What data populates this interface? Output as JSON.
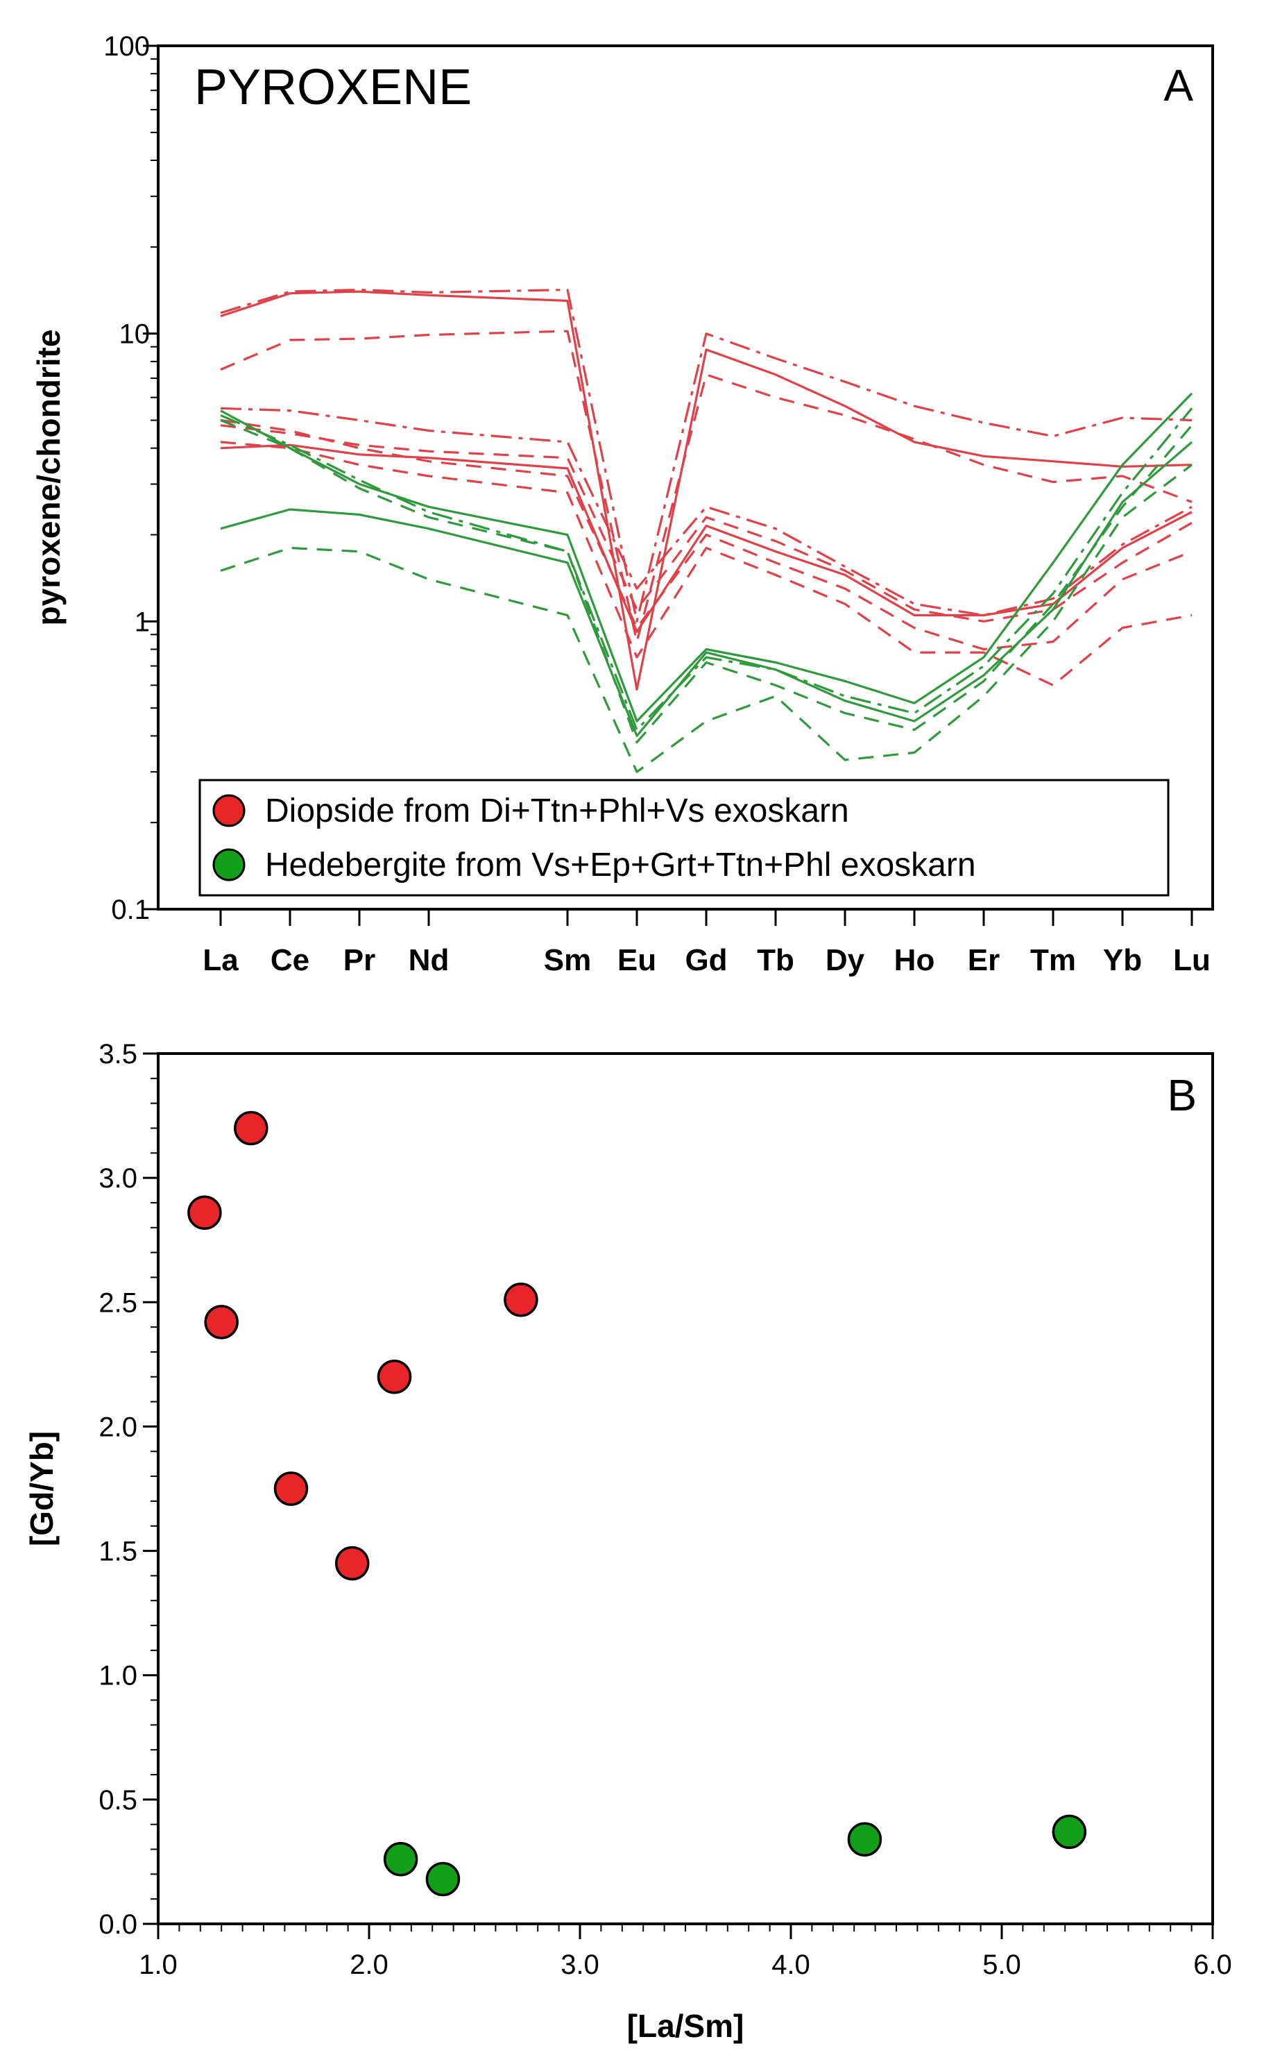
{
  "colors": {
    "diopside": "#e8262a",
    "diopside_line": "#e04048",
    "hedenbergite": "#12a01a",
    "hedenbergite_line": "#2f9a3c",
    "axis": "#000000",
    "background": "#ffffff"
  },
  "chart_data": [
    {
      "panel": "A",
      "type": "line",
      "title": "PYROXENE",
      "panel_label": "A",
      "ylabel": "pyroxene/chondrite",
      "xlabel": "",
      "yscale": "log",
      "ylim": [
        0.1,
        100
      ],
      "ytick_labels": [
        "0.1",
        "1",
        "10",
        "100"
      ],
      "grid": false,
      "legend_position": "bottom",
      "legend": [
        {
          "label": "Diopside from Di+Ttn+Phl+Vs exoskarn",
          "group": "diopside"
        },
        {
          "label": "Hedebergite from Vs+Ep+Grt+Ttn+Phl exoskarn",
          "group": "hedenbergite"
        }
      ],
      "categories": [
        "La",
        "Ce",
        "Pr",
        "Nd",
        "Sm",
        "Eu",
        "Gd",
        "Tb",
        "Dy",
        "Ho",
        "Er",
        "Tm",
        "Yb",
        "Lu"
      ],
      "category_positions": [
        0,
        1,
        2,
        3,
        5,
        6,
        7,
        8,
        9,
        10,
        11,
        12,
        13,
        14
      ],
      "series": [
        {
          "name": "Diopside 1",
          "group": "diopside",
          "dash": "solid",
          "values": [
            11.5,
            13.8,
            14.0,
            13.6,
            13.0,
            0.58,
            8.8,
            7.2,
            5.6,
            4.2,
            3.75,
            3.6,
            3.45,
            3.5
          ]
        },
        {
          "name": "Diopside 2",
          "group": "diopside",
          "dash": "dashdot",
          "values": [
            11.8,
            14.0,
            14.2,
            13.9,
            14.2,
            1.0,
            10.0,
            8.2,
            6.8,
            5.6,
            4.9,
            4.4,
            5.1,
            5.0
          ]
        },
        {
          "name": "Diopside 3",
          "group": "diopside",
          "dash": "dashed",
          "values": [
            7.5,
            9.5,
            9.6,
            9.9,
            10.2,
            0.85,
            7.2,
            6.0,
            5.2,
            4.3,
            3.5,
            3.05,
            3.2,
            2.6
          ]
        },
        {
          "name": "Diopside 4",
          "group": "diopside",
          "dash": "solid",
          "values": [
            4.0,
            4.1,
            3.8,
            3.7,
            3.4,
            0.92,
            2.15,
            1.75,
            1.45,
            1.05,
            1.05,
            1.15,
            1.8,
            2.4
          ]
        },
        {
          "name": "Diopside 5",
          "group": "diopside",
          "dash": "dashdot",
          "values": [
            5.5,
            5.4,
            5.0,
            4.6,
            4.2,
            1.3,
            2.5,
            2.1,
            1.55,
            1.15,
            1.05,
            1.2,
            1.85,
            2.5
          ]
        },
        {
          "name": "Diopside 6",
          "group": "diopside",
          "dash": "dashed",
          "values": [
            4.8,
            4.5,
            4.1,
            3.9,
            3.7,
            1.1,
            2.3,
            1.9,
            1.5,
            1.1,
            1.0,
            1.1,
            1.6,
            2.2
          ]
        },
        {
          "name": "Diopside 7",
          "group": "diopside",
          "dash": "dashed",
          "values": [
            4.2,
            4.0,
            3.5,
            3.2,
            2.8,
            0.75,
            1.8,
            1.45,
            1.15,
            0.78,
            0.78,
            0.6,
            0.95,
            1.05
          ]
        },
        {
          "name": "Diopside 8",
          "group": "diopside",
          "dash": "dashed",
          "values": [
            5.0,
            4.6,
            4.0,
            3.6,
            3.2,
            0.95,
            2.0,
            1.6,
            1.3,
            0.95,
            0.8,
            0.85,
            1.4,
            1.75
          ]
        },
        {
          "name": "Hedenbergite 1",
          "group": "hedenbergite",
          "dash": "solid",
          "values": [
            5.4,
            4.0,
            3.0,
            2.5,
            2.0,
            0.45,
            0.8,
            0.72,
            0.62,
            0.52,
            0.75,
            1.6,
            3.5,
            6.2
          ]
        },
        {
          "name": "Hedenbergite 2",
          "group": "hedenbergite",
          "dash": "dashdot",
          "values": [
            5.2,
            4.1,
            3.1,
            2.4,
            1.75,
            0.42,
            0.75,
            0.68,
            0.55,
            0.48,
            0.7,
            1.25,
            2.8,
            5.5
          ]
        },
        {
          "name": "Hedenbergite 3",
          "group": "hedenbergite",
          "dash": "solid",
          "values": [
            2.1,
            2.45,
            2.35,
            2.1,
            1.6,
            0.4,
            0.78,
            0.68,
            0.53,
            0.45,
            0.65,
            1.1,
            2.6,
            4.2
          ]
        },
        {
          "name": "Hedenbergite 4",
          "group": "hedenbergite",
          "dash": "dashed",
          "values": [
            1.5,
            1.8,
            1.75,
            1.4,
            1.05,
            0.3,
            0.45,
            0.55,
            0.33,
            0.35,
            0.55,
            1.0,
            2.3,
            3.5
          ]
        },
        {
          "name": "Hedenbergite 5",
          "group": "hedenbergite",
          "dash": "dashed",
          "values": [
            5.0,
            4.0,
            2.9,
            2.3,
            1.75,
            0.38,
            0.72,
            0.6,
            0.48,
            0.42,
            0.62,
            1.15,
            2.5,
            4.8
          ]
        }
      ]
    },
    {
      "panel": "B",
      "type": "scatter",
      "panel_label": "B",
      "xlabel": "[La/Sm]",
      "ylabel": "[Gd/Yb]",
      "xlim": [
        1.0,
        6.0
      ],
      "ylim": [
        0.0,
        3.5
      ],
      "xtick_labels": [
        "1.0",
        "2.0",
        "3.0",
        "4.0",
        "5.0",
        "6.0"
      ],
      "ytick_labels": [
        "0.0",
        "0.5",
        "1.0",
        "1.5",
        "2.0",
        "2.5",
        "3.0",
        "3.5"
      ],
      "grid": false,
      "series": [
        {
          "name": "Diopside",
          "group": "diopside",
          "points": [
            [
              1.22,
              2.86
            ],
            [
              1.3,
              2.42
            ],
            [
              1.44,
              3.2
            ],
            [
              1.63,
              1.75
            ],
            [
              1.92,
              1.45
            ],
            [
              2.12,
              2.2
            ],
            [
              2.72,
              2.51
            ]
          ]
        },
        {
          "name": "Hedenbergite",
          "group": "hedenbergite",
          "points": [
            [
              2.15,
              0.26
            ],
            [
              2.35,
              0.18
            ],
            [
              4.35,
              0.34
            ],
            [
              5.32,
              0.37
            ]
          ]
        }
      ]
    }
  ]
}
